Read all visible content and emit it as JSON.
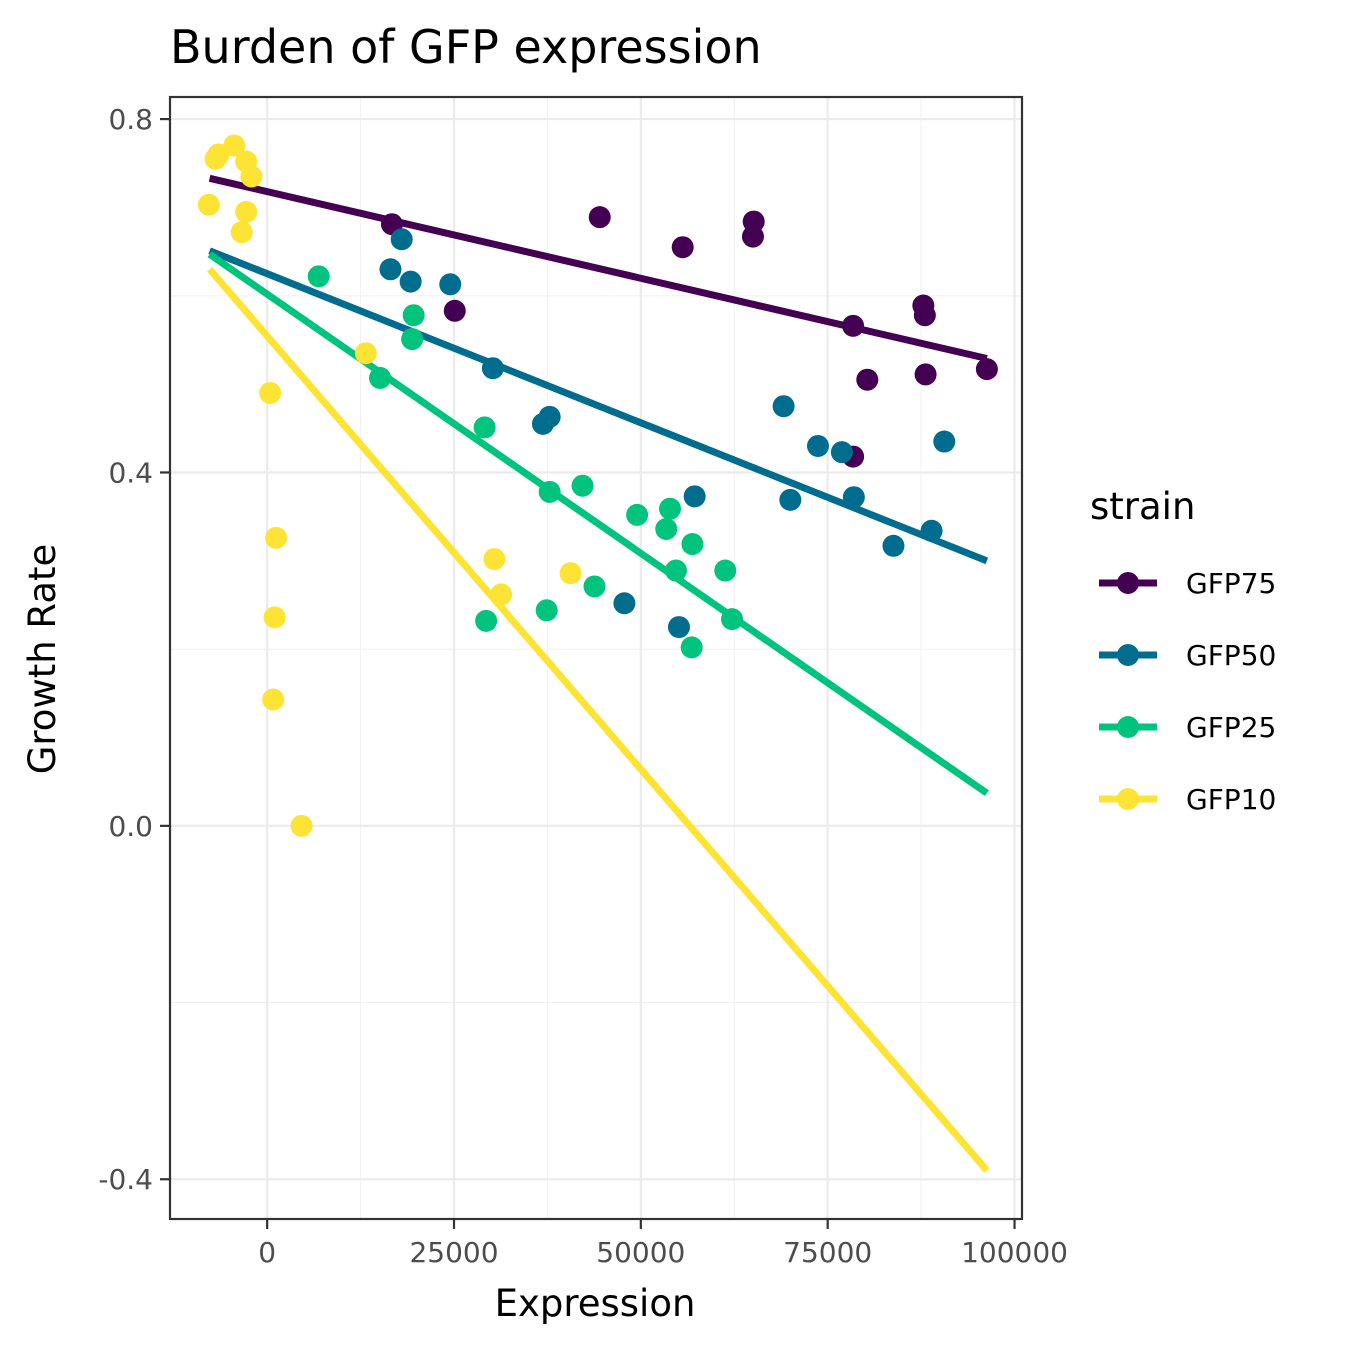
{
  "chart_data": {
    "type": "scatter",
    "title": "Burden of GFP expression",
    "xlabel": "Expression",
    "ylabel": "Growth Rate",
    "xlim": [
      -13000,
      101000
    ],
    "ylim": [
      -0.445,
      0.825
    ],
    "x_ticks": [
      {
        "value": 0,
        "label": "0"
      },
      {
        "value": 25000,
        "label": "25000"
      },
      {
        "value": 50000,
        "label": "50000"
      },
      {
        "value": 75000,
        "label": "75000"
      },
      {
        "value": 100000,
        "label": "100000"
      }
    ],
    "y_ticks": [
      {
        "value": -0.4,
        "label": "-0.4"
      },
      {
        "value": 0.0,
        "label": "0.0"
      },
      {
        "value": 0.4,
        "label": "0.4"
      },
      {
        "value": 0.8,
        "label": "0.8"
      }
    ],
    "grid": true,
    "legend": {
      "title": "strain",
      "placement": "right"
    },
    "series": [
      {
        "name": "GFP75",
        "color": "#440154",
        "fit": {
          "x": [
            -7700,
            96300
          ],
          "y": [
            0.733,
            0.529
          ]
        },
        "points": [
          [
            16700,
            0.681
          ],
          [
            44500,
            0.689
          ],
          [
            55600,
            0.655
          ],
          [
            65100,
            0.684
          ],
          [
            65000,
            0.667
          ],
          [
            25100,
            0.583
          ],
          [
            87800,
            0.589
          ],
          [
            88000,
            0.578
          ],
          [
            78400,
            0.566
          ],
          [
            80300,
            0.505
          ],
          [
            88100,
            0.511
          ],
          [
            96300,
            0.517
          ],
          [
            78400,
            0.418
          ]
        ]
      },
      {
        "name": "GFP50",
        "color": "#006D8F",
        "fit": {
          "x": [
            -7700,
            96300
          ],
          "y": [
            0.651,
            0.3
          ]
        },
        "points": [
          [
            18000,
            0.664
          ],
          [
            16500,
            0.63
          ],
          [
            19200,
            0.616
          ],
          [
            24500,
            0.613
          ],
          [
            30200,
            0.518
          ],
          [
            37800,
            0.463
          ],
          [
            36900,
            0.455
          ],
          [
            69100,
            0.475
          ],
          [
            73700,
            0.43
          ],
          [
            76900,
            0.423
          ],
          [
            78500,
            0.372
          ],
          [
            70000,
            0.369
          ],
          [
            57200,
            0.373
          ],
          [
            90600,
            0.435
          ],
          [
            88900,
            0.334
          ],
          [
            83800,
            0.317
          ],
          [
            47800,
            0.252
          ],
          [
            55100,
            0.225
          ]
        ]
      },
      {
        "name": "GFP25",
        "color": "#00C47D",
        "fit": {
          "x": [
            -7700,
            96300
          ],
          "y": [
            0.647,
            0.037
          ]
        },
        "points": [
          [
            6900,
            0.622
          ],
          [
            19600,
            0.578
          ],
          [
            19400,
            0.551
          ],
          [
            15100,
            0.507
          ],
          [
            29100,
            0.451
          ],
          [
            37800,
            0.378
          ],
          [
            42200,
            0.385
          ],
          [
            49500,
            0.352
          ],
          [
            53900,
            0.359
          ],
          [
            53400,
            0.336
          ],
          [
            56900,
            0.319
          ],
          [
            54700,
            0.289
          ],
          [
            61300,
            0.289
          ],
          [
            43800,
            0.271
          ],
          [
            37400,
            0.244
          ],
          [
            29300,
            0.232
          ],
          [
            62200,
            0.234
          ],
          [
            56800,
            0.202
          ]
        ]
      },
      {
        "name": "GFP10",
        "color": "#FDE333",
        "fit": {
          "x": [
            -7700,
            96300
          ],
          "y": [
            0.63,
            -0.39
          ]
        },
        "points": [
          [
            -6500,
            0.76
          ],
          [
            -4400,
            0.77
          ],
          [
            -2800,
            0.752
          ],
          [
            -6900,
            0.755
          ],
          [
            -2100,
            0.735
          ],
          [
            -7800,
            0.703
          ],
          [
            -2800,
            0.695
          ],
          [
            -3400,
            0.672
          ],
          [
            13200,
            0.535
          ],
          [
            400,
            0.49
          ],
          [
            1200,
            0.326
          ],
          [
            30400,
            0.302
          ],
          [
            31300,
            0.262
          ],
          [
            40600,
            0.286
          ],
          [
            1000,
            0.236
          ],
          [
            800,
            0.143
          ],
          [
            4600,
            0.0
          ]
        ]
      }
    ]
  }
}
